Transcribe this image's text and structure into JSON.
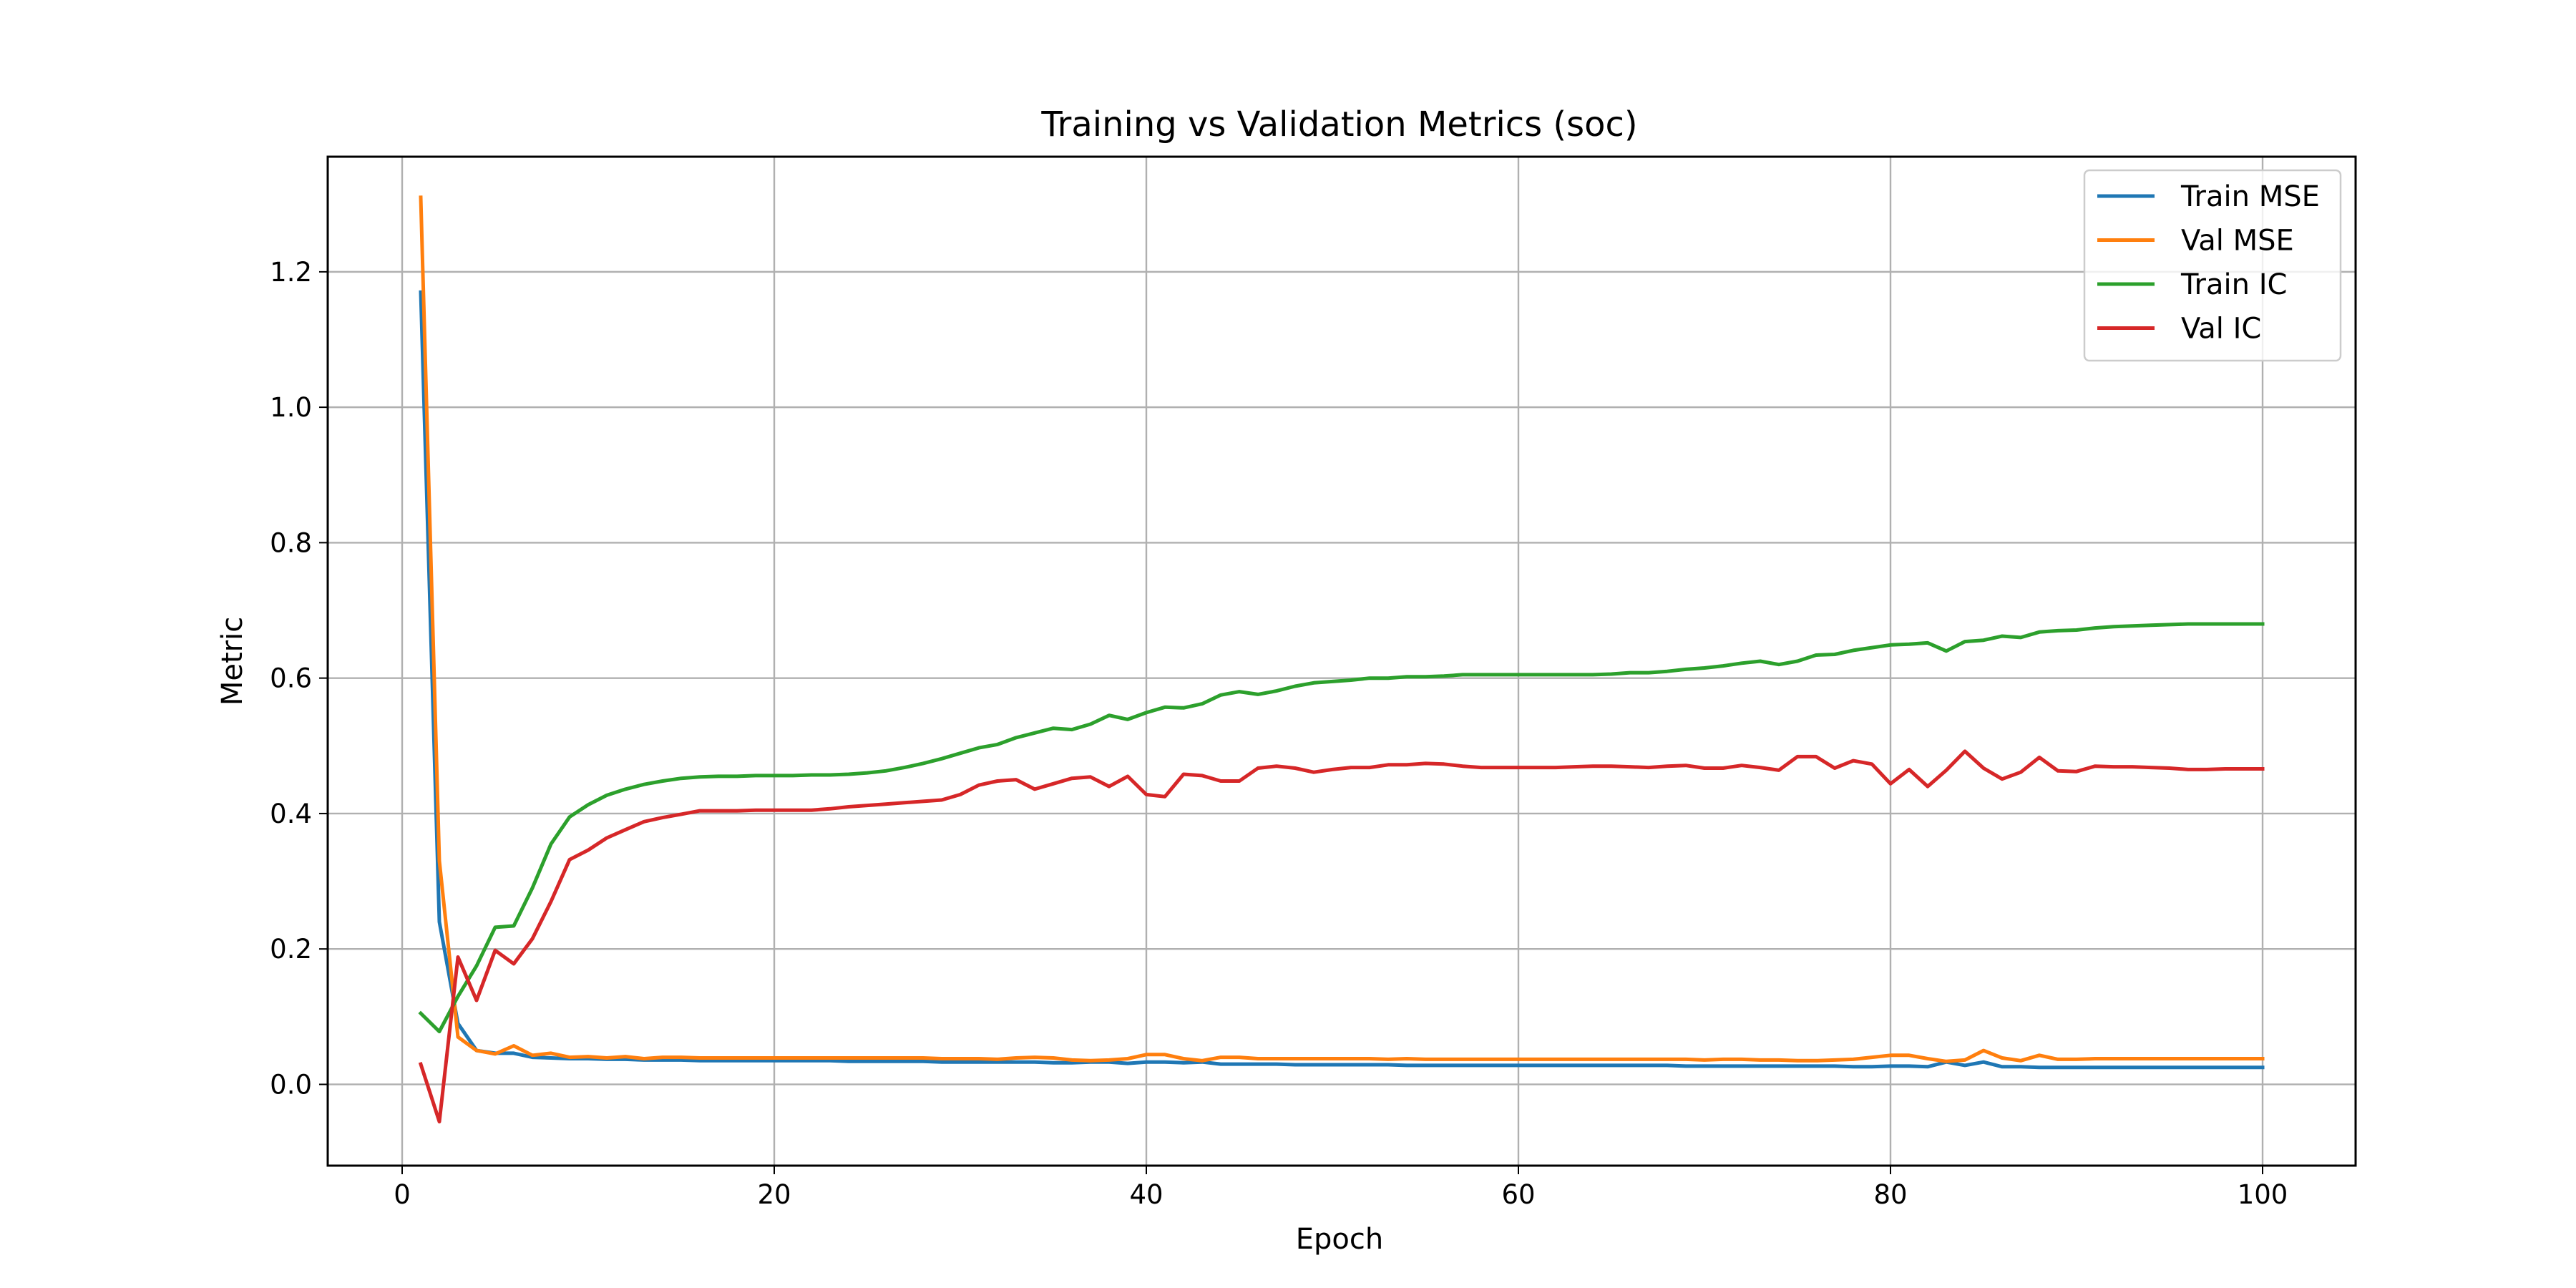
{
  "chart_data": {
    "type": "line",
    "title": "Training vs Validation Metrics (soc)",
    "xlabel": "Epoch",
    "ylabel": "Metric",
    "xlim": [
      -4,
      105
    ],
    "ylim": [
      -0.12,
      1.37
    ],
    "xticks": [
      0,
      20,
      40,
      60,
      80,
      100
    ],
    "yticks": [
      0.0,
      0.2,
      0.4,
      0.6,
      0.8,
      1.0,
      1.2
    ],
    "ytick_labels": [
      "0.0",
      "0.2",
      "0.4",
      "0.6",
      "0.8",
      "1.0",
      "1.2"
    ],
    "xtick_labels": [
      "0",
      "20",
      "40",
      "60",
      "80",
      "100"
    ],
    "grid": true,
    "legend_position": "top-right",
    "x": [
      1,
      2,
      3,
      4,
      5,
      6,
      7,
      8,
      9,
      10,
      11,
      12,
      13,
      14,
      15,
      16,
      17,
      18,
      19,
      20,
      21,
      22,
      23,
      24,
      25,
      26,
      27,
      28,
      29,
      30,
      31,
      32,
      33,
      34,
      35,
      36,
      37,
      38,
      39,
      40,
      41,
      42,
      43,
      44,
      45,
      46,
      47,
      48,
      49,
      50,
      51,
      52,
      53,
      54,
      55,
      56,
      57,
      58,
      59,
      60,
      61,
      62,
      63,
      64,
      65,
      66,
      67,
      68,
      69,
      70,
      71,
      72,
      73,
      74,
      75,
      76,
      77,
      78,
      79,
      80,
      81,
      82,
      83,
      84,
      85,
      86,
      87,
      88,
      89,
      90,
      91,
      92,
      93,
      94,
      95,
      96,
      97,
      98,
      99,
      100
    ],
    "series": [
      {
        "name": "Train MSE",
        "color": "#1f77b4",
        "values": [
          1.17,
          0.24,
          0.09,
          0.05,
          0.046,
          0.046,
          0.04,
          0.039,
          0.038,
          0.038,
          0.037,
          0.037,
          0.036,
          0.036,
          0.036,
          0.035,
          0.035,
          0.035,
          0.035,
          0.035,
          0.035,
          0.035,
          0.035,
          0.034,
          0.034,
          0.034,
          0.034,
          0.034,
          0.033,
          0.033,
          0.033,
          0.033,
          0.033,
          0.033,
          0.032,
          0.032,
          0.033,
          0.033,
          0.031,
          0.033,
          0.033,
          0.032,
          0.033,
          0.03,
          0.03,
          0.03,
          0.03,
          0.029,
          0.029,
          0.029,
          0.029,
          0.029,
          0.029,
          0.028,
          0.028,
          0.028,
          0.028,
          0.028,
          0.028,
          0.028,
          0.028,
          0.028,
          0.028,
          0.028,
          0.028,
          0.028,
          0.028,
          0.028,
          0.027,
          0.027,
          0.027,
          0.027,
          0.027,
          0.027,
          0.027,
          0.027,
          0.027,
          0.026,
          0.026,
          0.027,
          0.027,
          0.026,
          0.033,
          0.028,
          0.033,
          0.026,
          0.026,
          0.025,
          0.025,
          0.025,
          0.025,
          0.025,
          0.025,
          0.025,
          0.025,
          0.025,
          0.025,
          0.025,
          0.025,
          0.025
        ]
      },
      {
        "name": "Val MSE",
        "color": "#ff7f0e",
        "values": [
          1.31,
          0.33,
          0.07,
          0.05,
          0.045,
          0.057,
          0.043,
          0.046,
          0.04,
          0.041,
          0.039,
          0.041,
          0.038,
          0.04,
          0.04,
          0.039,
          0.039,
          0.039,
          0.039,
          0.039,
          0.039,
          0.039,
          0.039,
          0.039,
          0.039,
          0.039,
          0.039,
          0.039,
          0.038,
          0.038,
          0.038,
          0.037,
          0.039,
          0.04,
          0.039,
          0.036,
          0.035,
          0.036,
          0.038,
          0.044,
          0.044,
          0.038,
          0.035,
          0.04,
          0.04,
          0.038,
          0.038,
          0.038,
          0.038,
          0.038,
          0.038,
          0.038,
          0.037,
          0.038,
          0.037,
          0.037,
          0.037,
          0.037,
          0.037,
          0.037,
          0.037,
          0.037,
          0.037,
          0.037,
          0.037,
          0.037,
          0.037,
          0.037,
          0.037,
          0.036,
          0.037,
          0.037,
          0.036,
          0.036,
          0.035,
          0.035,
          0.036,
          0.037,
          0.04,
          0.043,
          0.043,
          0.038,
          0.034,
          0.036,
          0.05,
          0.039,
          0.035,
          0.043,
          0.037,
          0.037,
          0.038,
          0.038,
          0.038,
          0.038,
          0.038,
          0.038,
          0.038,
          0.038,
          0.038,
          0.038
        ]
      },
      {
        "name": "Train IC",
        "color": "#2ca02c",
        "values": [
          0.105,
          0.078,
          0.13,
          0.175,
          0.232,
          0.234,
          0.29,
          0.355,
          0.395,
          0.413,
          0.427,
          0.436,
          0.443,
          0.448,
          0.452,
          0.454,
          0.455,
          0.455,
          0.456,
          0.456,
          0.456,
          0.457,
          0.457,
          0.458,
          0.46,
          0.463,
          0.468,
          0.474,
          0.481,
          0.489,
          0.497,
          0.502,
          0.512,
          0.519,
          0.526,
          0.524,
          0.532,
          0.545,
          0.539,
          0.549,
          0.557,
          0.556,
          0.562,
          0.575,
          0.58,
          0.576,
          0.581,
          0.588,
          0.593,
          0.595,
          0.597,
          0.6,
          0.6,
          0.602,
          0.602,
          0.603,
          0.605,
          0.605,
          0.605,
          0.605,
          0.605,
          0.605,
          0.605,
          0.605,
          0.606,
          0.608,
          0.608,
          0.61,
          0.613,
          0.615,
          0.618,
          0.622,
          0.625,
          0.62,
          0.625,
          0.634,
          0.635,
          0.641,
          0.645,
          0.649,
          0.65,
          0.652,
          0.64,
          0.654,
          0.656,
          0.662,
          0.66,
          0.668,
          0.67,
          0.671,
          0.674,
          0.676,
          0.677,
          0.678,
          0.679,
          0.68,
          0.68,
          0.68,
          0.68,
          0.68
        ]
      },
      {
        "name": "Val IC",
        "color": "#d62728",
        "values": [
          0.03,
          -0.055,
          0.188,
          0.124,
          0.198,
          0.178,
          0.215,
          0.27,
          0.332,
          0.346,
          0.364,
          0.376,
          0.388,
          0.394,
          0.399,
          0.404,
          0.404,
          0.404,
          0.405,
          0.405,
          0.405,
          0.405,
          0.407,
          0.41,
          0.412,
          0.414,
          0.416,
          0.418,
          0.42,
          0.428,
          0.442,
          0.448,
          0.45,
          0.436,
          0.444,
          0.452,
          0.454,
          0.44,
          0.455,
          0.428,
          0.425,
          0.458,
          0.456,
          0.448,
          0.448,
          0.467,
          0.47,
          0.467,
          0.461,
          0.465,
          0.468,
          0.468,
          0.472,
          0.472,
          0.474,
          0.473,
          0.47,
          0.468,
          0.468,
          0.468,
          0.468,
          0.468,
          0.469,
          0.47,
          0.47,
          0.469,
          0.468,
          0.47,
          0.471,
          0.467,
          0.467,
          0.471,
          0.468,
          0.464,
          0.484,
          0.484,
          0.467,
          0.478,
          0.473,
          0.444,
          0.465,
          0.44,
          0.464,
          0.492,
          0.467,
          0.451,
          0.461,
          0.483,
          0.463,
          0.462,
          0.47,
          0.469,
          0.469,
          0.468,
          0.467,
          0.465,
          0.465,
          0.466,
          0.466,
          0.466
        ]
      }
    ]
  }
}
